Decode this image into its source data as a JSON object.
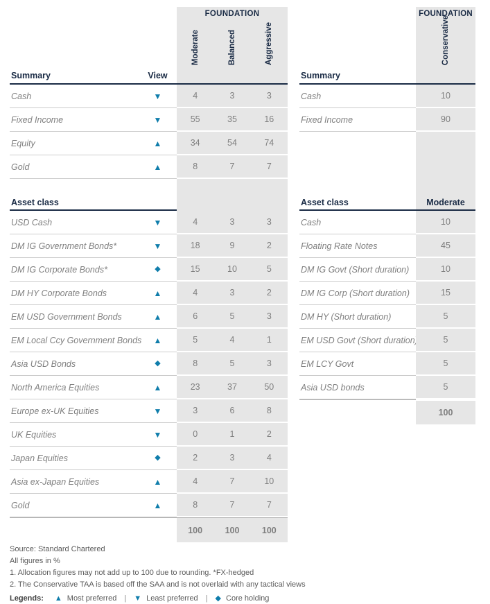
{
  "left_table": {
    "group_header": "FOUNDATION",
    "columns": [
      "Moderate",
      "Balanced",
      "Aggressive"
    ],
    "summary": {
      "header": {
        "label": "Summary",
        "view": "View"
      },
      "rows": [
        {
          "label": "Cash",
          "view": "down-triangle",
          "values": [
            4,
            3,
            3
          ]
        },
        {
          "label": "Fixed Income",
          "view": "down-triangle",
          "values": [
            55,
            35,
            16
          ]
        },
        {
          "label": "Equity",
          "view": "up-triangle",
          "values": [
            34,
            54,
            74
          ]
        },
        {
          "label": "Gold",
          "view": "up-triangle",
          "values": [
            8,
            7,
            7
          ]
        }
      ]
    },
    "asset_class": {
      "header": "Asset class",
      "rows": [
        {
          "label": "USD Cash",
          "view": "down-triangle",
          "values": [
            4,
            3,
            3
          ]
        },
        {
          "label": "DM IG Government Bonds*",
          "view": "down-triangle",
          "values": [
            18,
            9,
            2
          ]
        },
        {
          "label": "DM IG Corporate Bonds*",
          "view": "diamond",
          "values": [
            15,
            10,
            5
          ]
        },
        {
          "label": "DM HY Corporate Bonds",
          "view": "up-triangle",
          "values": [
            4,
            3,
            2
          ]
        },
        {
          "label": "EM USD Government Bonds",
          "view": "up-triangle",
          "values": [
            6,
            5,
            3
          ]
        },
        {
          "label": "EM Local Ccy Government Bonds",
          "view": "up-triangle",
          "values": [
            5,
            4,
            1
          ]
        },
        {
          "label": "Asia USD Bonds",
          "view": "diamond",
          "values": [
            8,
            5,
            3
          ]
        },
        {
          "label": "North America Equities",
          "view": "up-triangle",
          "values": [
            23,
            37,
            50
          ]
        },
        {
          "label": "Europe ex-UK Equities",
          "view": "down-triangle",
          "values": [
            3,
            6,
            8
          ]
        },
        {
          "label": "UK Equities",
          "view": "down-triangle",
          "values": [
            0,
            1,
            2
          ]
        },
        {
          "label": "Japan Equities",
          "view": "diamond",
          "values": [
            2,
            3,
            4
          ]
        },
        {
          "label": "Asia ex-Japan Equities",
          "view": "up-triangle",
          "values": [
            4,
            7,
            10
          ]
        },
        {
          "label": "Gold",
          "view": "up-triangle",
          "values": [
            8,
            7,
            7
          ]
        }
      ],
      "totals": [
        100,
        100,
        100
      ]
    }
  },
  "right_table": {
    "group_header": "FOUNDATION",
    "columns": [
      "Conservative"
    ],
    "summary": {
      "header": {
        "label": "Summary"
      },
      "rows": [
        {
          "label": "Cash",
          "values": [
            10
          ]
        },
        {
          "label": "Fixed Income",
          "values": [
            90
          ]
        }
      ]
    },
    "asset_class": {
      "header": "Asset class",
      "value_header": "Moderate",
      "rows": [
        {
          "label": "Cash",
          "values": [
            10
          ]
        },
        {
          "label": "Floating Rate Notes",
          "values": [
            45
          ]
        },
        {
          "label": "DM IG Govt (Short duration)",
          "values": [
            10
          ]
        },
        {
          "label": "DM IG Corp (Short duration)",
          "values": [
            15
          ]
        },
        {
          "label": "DM HY (Short duration)",
          "values": [
            5
          ]
        },
        {
          "label": "EM USD Govt (Short duration)",
          "values": [
            5
          ]
        },
        {
          "label": "EM LCY Govt",
          "values": [
            5
          ]
        },
        {
          "label": "Asia USD bonds",
          "values": [
            5
          ]
        }
      ],
      "totals": [
        100
      ]
    }
  },
  "footer": {
    "source": "Source: Standard Chartered",
    "figures_note": "All figures in %",
    "note1": "1. Allocation figures may not add up to 100 due to rounding. *FX-hedged",
    "note2": "2. The Conservative TAA is based off the SAA and is not overlaid with any tactical views",
    "legend": {
      "label": "Legends:",
      "separator": "|",
      "items": [
        {
          "icon": "up-triangle",
          "text": "Most preferred"
        },
        {
          "icon": "down-triangle",
          "text": "Least preferred"
        },
        {
          "icon": "diamond",
          "text": "Core holding"
        }
      ]
    }
  },
  "icons": {
    "up-triangle": "▲",
    "down-triangle": "▼",
    "diamond": "◆"
  },
  "colors": {
    "accent_blue": "#0f7dab",
    "navy": "#1a2b45",
    "band_gray": "#e6e6e6"
  }
}
